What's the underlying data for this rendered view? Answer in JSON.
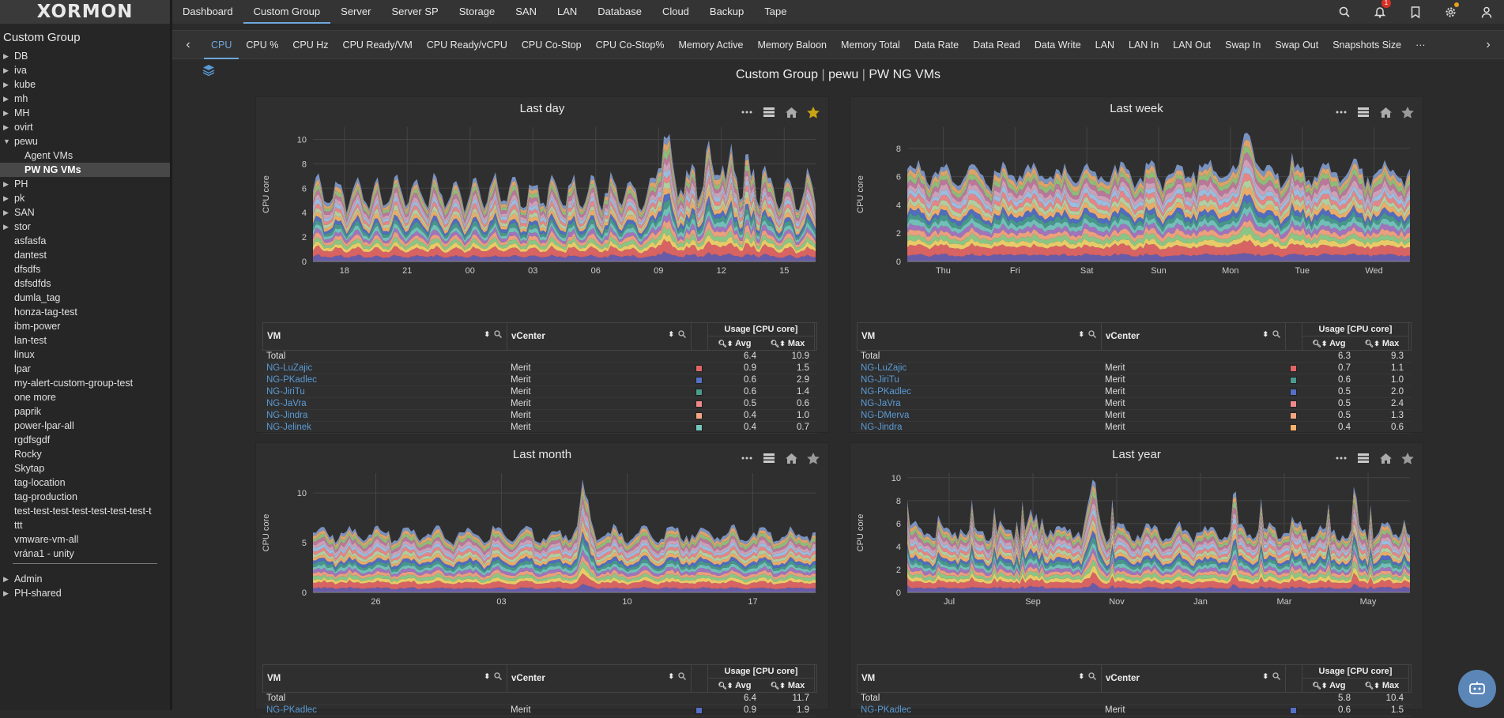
{
  "app": {
    "logo": "XORMON"
  },
  "top_nav": [
    "Dashboard",
    "Custom Group",
    "Server",
    "Server SP",
    "Storage",
    "SAN",
    "LAN",
    "Database",
    "Cloud",
    "Backup",
    "Tape"
  ],
  "top_nav_active": 1,
  "notifications_count": "1",
  "sidebar": {
    "title": "Custom Group",
    "items": [
      {
        "label": "DB",
        "arrow": "right",
        "level": 0
      },
      {
        "label": "iva",
        "arrow": "right",
        "level": 0
      },
      {
        "label": "kube",
        "arrow": "right",
        "level": 0
      },
      {
        "label": "mh",
        "arrow": "right",
        "level": 0
      },
      {
        "label": "MH",
        "arrow": "right",
        "level": 0
      },
      {
        "label": "ovirt",
        "arrow": "right",
        "level": 0
      },
      {
        "label": "pewu",
        "arrow": "down",
        "level": 0
      },
      {
        "label": "Agent VMs",
        "arrow": "",
        "level": 1
      },
      {
        "label": "PW NG VMs",
        "arrow": "",
        "level": 1,
        "selected": true
      },
      {
        "label": "PH",
        "arrow": "right",
        "level": 0
      },
      {
        "label": "pk",
        "arrow": "right",
        "level": 0
      },
      {
        "label": "SAN",
        "arrow": "right",
        "level": 0
      },
      {
        "label": "stor",
        "arrow": "right",
        "level": 0
      },
      {
        "label": "asfasfa",
        "arrow": "",
        "level": 0
      },
      {
        "label": "dantest",
        "arrow": "",
        "level": 0
      },
      {
        "label": "dfsdfs",
        "arrow": "",
        "level": 0
      },
      {
        "label": "dsfsdfds",
        "arrow": "",
        "level": 0
      },
      {
        "label": "dumla_tag",
        "arrow": "",
        "level": 0
      },
      {
        "label": "honza-tag-test",
        "arrow": "",
        "level": 0
      },
      {
        "label": "ibm-power",
        "arrow": "",
        "level": 0
      },
      {
        "label": "lan-test",
        "arrow": "",
        "level": 0
      },
      {
        "label": "linux",
        "arrow": "",
        "level": 0
      },
      {
        "label": "lpar",
        "arrow": "",
        "level": 0
      },
      {
        "label": "my-alert-custom-group-test",
        "arrow": "",
        "level": 0
      },
      {
        "label": "one more",
        "arrow": "",
        "level": 0
      },
      {
        "label": "paprik",
        "arrow": "",
        "level": 0
      },
      {
        "label": "power-lpar-all",
        "arrow": "",
        "level": 0
      },
      {
        "label": "rgdfsgdf",
        "arrow": "",
        "level": 0
      },
      {
        "label": "Rocky",
        "arrow": "",
        "level": 0
      },
      {
        "label": "Skytap",
        "arrow": "",
        "level": 0
      },
      {
        "label": "tag-location",
        "arrow": "",
        "level": 0
      },
      {
        "label": "tag-production",
        "arrow": "",
        "level": 0
      },
      {
        "label": "test-test-test-test-test-test-test-t",
        "arrow": "",
        "level": 0
      },
      {
        "label": "ttt",
        "arrow": "",
        "level": 0
      },
      {
        "label": "vmware-vm-all",
        "arrow": "",
        "level": 0
      },
      {
        "label": "vrána1 - unity",
        "arrow": "",
        "level": 0
      },
      {
        "sep": true
      },
      {
        "label": "Admin",
        "arrow": "right",
        "level": 0
      },
      {
        "label": "PH-shared",
        "arrow": "right",
        "level": 0
      }
    ]
  },
  "sub_tabs": [
    "CPU",
    "CPU %",
    "CPU Hz",
    "CPU Ready/VM",
    "CPU Ready/vCPU",
    "CPU Co-Stop",
    "CPU Co-Stop%",
    "Memory Active",
    "Memory Baloon",
    "Memory Total",
    "Data Rate",
    "Data Read",
    "Data Write",
    "LAN",
    "LAN In",
    "LAN Out",
    "Swap In",
    "Swap Out",
    "Snapshots Size"
  ],
  "sub_tabs_active": 0,
  "sub_tabs_more": "···",
  "breadcrumb": {
    "a": "Custom Group",
    "b": "pewu",
    "c": "PW NG VMs",
    "sep": "|"
  },
  "palette": [
    "#6b5fb0",
    "#e06666",
    "#f3d36b",
    "#8fce8a",
    "#f4a582",
    "#a678c4",
    "#76c7c0",
    "#4a9b8e",
    "#5470c6",
    "#f6b26b",
    "#b6d7a8",
    "#f08a8a",
    "#9fc5e8",
    "#d5a6bd",
    "#c27ba0",
    "#93c47d",
    "#e6a96b",
    "#7e98c8",
    "#f2c46d",
    "#e8776f"
  ],
  "table_headers": {
    "vm": "VM",
    "vcenter": "vCenter",
    "usage": "Usage [CPU core]",
    "avg": "Avg",
    "max": "Max"
  },
  "panels": [
    {
      "title": "Last day",
      "starred": true,
      "chart_data": {
        "type": "area",
        "stacked": true,
        "ylabel": "CPU core",
        "ylim": [
          0,
          11
        ],
        "yticks": [
          0,
          2,
          4,
          6,
          8,
          10
        ],
        "xticks": [
          "18",
          "21",
          "00",
          "03",
          "06",
          "09",
          "12",
          "15"
        ],
        "peak_index": 0.7
      },
      "rows": [
        {
          "vm": "Total",
          "vcenter": "",
          "color": "",
          "avg": "6.4",
          "max": "10.9"
        },
        {
          "vm": "NG-LuZajic",
          "vcenter": "Merit",
          "color": "#e06666",
          "avg": "0.9",
          "max": "1.5"
        },
        {
          "vm": "NG-PKadlec",
          "vcenter": "Merit",
          "color": "#5470c6",
          "avg": "0.6",
          "max": "2.9"
        },
        {
          "vm": "NG-JiriTu",
          "vcenter": "Merit",
          "color": "#4a9b8e",
          "avg": "0.6",
          "max": "1.4"
        },
        {
          "vm": "NG-JaVra",
          "vcenter": "Merit",
          "color": "#f08a8a",
          "avg": "0.5",
          "max": "0.6"
        },
        {
          "vm": "NG-Jindra",
          "vcenter": "Merit",
          "color": "#f4a582",
          "avg": "0.4",
          "max": "1.0"
        },
        {
          "vm": "NG-Jelinek",
          "vcenter": "Merit",
          "color": "#76c7c0",
          "avg": "0.4",
          "max": "0.7"
        }
      ]
    },
    {
      "title": "Last week",
      "starred": false,
      "chart_data": {
        "type": "area",
        "stacked": true,
        "ylabel": "CPU core",
        "ylim": [
          0,
          9.5
        ],
        "yticks": [
          0,
          2,
          4,
          6,
          8
        ],
        "xticks": [
          "Thu",
          "Fri",
          "Sat",
          "Sun",
          "Mon",
          "Tue",
          "Wed"
        ],
        "peak_index": 0.68
      },
      "rows": [
        {
          "vm": "Total",
          "vcenter": "",
          "color": "",
          "avg": "6.3",
          "max": "9.3"
        },
        {
          "vm": "NG-LuZajic",
          "vcenter": "Merit",
          "color": "#e06666",
          "avg": "0.7",
          "max": "1.1"
        },
        {
          "vm": "NG-JiriTu",
          "vcenter": "Merit",
          "color": "#4a9b8e",
          "avg": "0.6",
          "max": "1.0"
        },
        {
          "vm": "NG-PKadlec",
          "vcenter": "Merit",
          "color": "#5470c6",
          "avg": "0.5",
          "max": "2.0"
        },
        {
          "vm": "NG-JaVra",
          "vcenter": "Merit",
          "color": "#f08a8a",
          "avg": "0.5",
          "max": "2.4"
        },
        {
          "vm": "NG-DMerva",
          "vcenter": "Merit",
          "color": "#f4a582",
          "avg": "0.5",
          "max": "1.3"
        },
        {
          "vm": "NG-Jindra",
          "vcenter": "Merit",
          "color": "#f6b26b",
          "avg": "0.4",
          "max": "0.6"
        }
      ]
    },
    {
      "title": "Last month",
      "starred": false,
      "chart_data": {
        "type": "area",
        "stacked": true,
        "ylabel": "CPU core",
        "ylim": [
          0,
          12
        ],
        "yticks": [
          0,
          5,
          10
        ],
        "xticks": [
          "26",
          "03",
          "10",
          "17"
        ],
        "peak_index": 0.54
      },
      "rows": [
        {
          "vm": "Total",
          "vcenter": "",
          "color": "",
          "avg": "6.4",
          "max": "11.7"
        },
        {
          "vm": "NG-PKadlec",
          "vcenter": "Merit",
          "color": "#5470c6",
          "avg": "0.9",
          "max": "1.9"
        }
      ]
    },
    {
      "title": "Last year",
      "starred": false,
      "chart_data": {
        "type": "area",
        "stacked": true,
        "ylabel": "CPU core",
        "ylim": [
          0,
          10.4
        ],
        "yticks": [
          0,
          2,
          4,
          6,
          8,
          10
        ],
        "xticks": [
          "Jul",
          "Sep",
          "Nov",
          "Jan",
          "Mar",
          "May"
        ],
        "peak_index": 0.37
      },
      "rows": [
        {
          "vm": "Total",
          "vcenter": "",
          "color": "",
          "avg": "5.8",
          "max": "10.4"
        },
        {
          "vm": "NG-PKadlec",
          "vcenter": "Merit",
          "color": "#5470c6",
          "avg": "0.6",
          "max": "1.5"
        }
      ]
    }
  ]
}
